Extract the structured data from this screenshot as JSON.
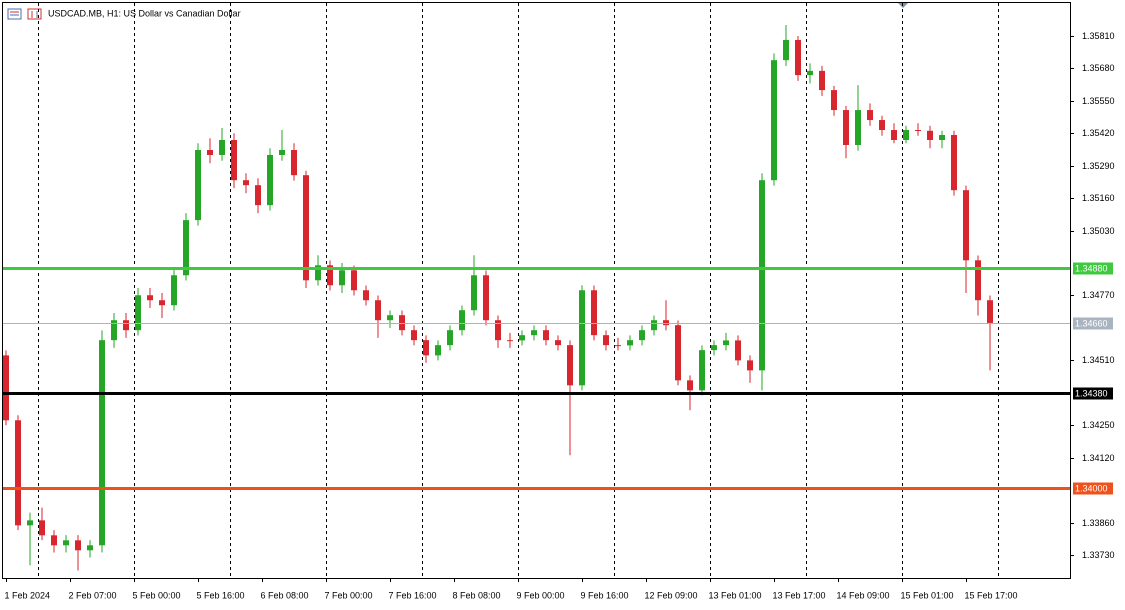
{
  "chart_data": {
    "type": "candlestick",
    "title": "USDCAD.MB, H1: US Dollar vs Canadian Dollar",
    "x": [
      0,
      3,
      6,
      9,
      12,
      15,
      18,
      21,
      24,
      27,
      30,
      33,
      36,
      39,
      42,
      45,
      48,
      51,
      54,
      57,
      60,
      63,
      66,
      69,
      72,
      75,
      78,
      81,
      84,
      87,
      90,
      93,
      96,
      99,
      102,
      105,
      108,
      111,
      114,
      117,
      120,
      123,
      126,
      129,
      132,
      135,
      138,
      141,
      144,
      147,
      150,
      153,
      156,
      159,
      162,
      165,
      168,
      171,
      174,
      177,
      180,
      183,
      186,
      189,
      192,
      195,
      198,
      201,
      204,
      207,
      210,
      213,
      216,
      219,
      222,
      225,
      228,
      231,
      234,
      237,
      240,
      243,
      246
    ],
    "open": [
      1.3453,
      1.3427,
      1.33849,
      1.33869,
      1.33809,
      1.33769,
      1.33789,
      1.33749,
      1.33769,
      1.34591,
      1.34671,
      1.34631,
      1.34771,
      1.34751,
      1.34731,
      1.34851,
      1.35072,
      1.35353,
      1.35333,
      1.35393,
      1.35232,
      1.35212,
      1.35132,
      1.35333,
      1.35353,
      1.35252,
      1.34831,
      1.34891,
      1.34811,
      1.34871,
      1.34791,
      1.34751,
      1.34671,
      1.34691,
      1.34631,
      1.34591,
      1.3453,
      1.34571,
      1.34631,
      1.34711,
      1.34851,
      1.34671,
      1.34591,
      1.3459,
      1.34611,
      1.34631,
      1.34591,
      1.34571,
      1.3441,
      1.34791,
      1.34611,
      1.34571,
      1.3457,
      1.34591,
      1.34631,
      1.34671,
      1.34651,
      1.3443,
      1.3439,
      1.34551,
      1.34571,
      1.3459,
      1.3451,
      1.3447,
      1.35232,
      1.35713,
      1.35794,
      1.35653,
      1.3567,
      1.35593,
      1.35513,
      1.35373,
      1.35513,
      1.35473,
      1.35433,
      1.35393,
      1.35433,
      1.3543,
      1.35393,
      1.35413,
      1.35192,
      1.34911,
      1.34751
    ],
    "high": [
      1.3455,
      1.3429,
      1.339,
      1.3392,
      1.3383,
      1.3381,
      1.3381,
      1.3379,
      1.3463,
      1.347,
      1.347,
      1.348,
      1.348,
      1.3478,
      1.3488,
      1.351,
      1.3538,
      1.354,
      1.35441,
      1.3542,
      1.3526,
      1.3524,
      1.3536,
      1.35433,
      1.3538,
      1.3527,
      1.34931,
      1.3491,
      1.349,
      1.3489,
      1.3481,
      1.3477,
      1.3471,
      1.3471,
      1.3465,
      1.3461,
      1.3459,
      1.3465,
      1.3473,
      1.34931,
      1.3487,
      1.3469,
      1.3462,
      1.3463,
      1.3465,
      1.3465,
      1.3461,
      1.3459,
      1.34811,
      1.3481,
      1.3463,
      1.346,
      1.3461,
      1.3465,
      1.3469,
      1.34751,
      1.3467,
      1.3445,
      1.3457,
      1.3459,
      1.3462,
      1.3461,
      1.3453,
      1.3526,
      1.3574,
      1.35854,
      1.3581,
      1.357,
      1.3569,
      1.3561,
      1.3553,
      1.35613,
      1.3554,
      1.3549,
      1.3546,
      1.3545,
      1.3546,
      1.3545,
      1.3543,
      1.3543,
      1.3521,
      1.3493,
      1.3477
    ],
    "low": [
      1.3425,
      1.3383,
      1.33689,
      1.3379,
      1.3374,
      1.3374,
      1.33668,
      1.3372,
      1.3374,
      1.3456,
      1.346,
      1.3461,
      1.3472,
      1.3468,
      1.3471,
      1.3483,
      1.3505,
      1.353,
      1.3531,
      1.352,
      1.3518,
      1.351,
      1.3511,
      1.3531,
      1.3523,
      1.348,
      1.3481,
      1.3479,
      1.3478,
      1.3477,
      1.3473,
      1.346,
      1.3464,
      1.3461,
      1.3457,
      1.345,
      1.3451,
      1.3455,
      1.3461,
      1.3469,
      1.3465,
      1.3456,
      1.3456,
      1.3457,
      1.3459,
      1.3457,
      1.3455,
      1.3413,
      1.3439,
      1.3459,
      1.3455,
      1.3455,
      1.3455,
      1.3457,
      1.3461,
      1.3463,
      1.3441,
      1.3431,
      1.3437,
      1.3453,
      1.3455,
      1.3449,
      1.3442,
      1.3439,
      1.3521,
      1.3569,
      1.3563,
      1.3562,
      1.3557,
      1.3549,
      1.3532,
      1.3535,
      1.3545,
      1.3541,
      1.3538,
      1.3538,
      1.3541,
      1.3536,
      1.3536,
      1.3517,
      1.3478,
      1.3469,
      1.3447
    ],
    "close": [
      1.3427,
      1.33849,
      1.33869,
      1.33809,
      1.33769,
      1.33789,
      1.33749,
      1.33769,
      1.34591,
      1.34671,
      1.34631,
      1.34771,
      1.34751,
      1.34731,
      1.34851,
      1.35072,
      1.35353,
      1.35333,
      1.35393,
      1.35232,
      1.35212,
      1.35132,
      1.35333,
      1.35353,
      1.35252,
      1.34831,
      1.34891,
      1.34811,
      1.34871,
      1.34791,
      1.34751,
      1.34671,
      1.34691,
      1.34631,
      1.34591,
      1.3453,
      1.34571,
      1.34631,
      1.34711,
      1.34851,
      1.34671,
      1.34591,
      1.3459,
      1.34611,
      1.34631,
      1.34591,
      1.34571,
      1.3441,
      1.34791,
      1.34611,
      1.34571,
      1.3457,
      1.34591,
      1.34631,
      1.34671,
      1.34651,
      1.3443,
      1.3439,
      1.34551,
      1.34571,
      1.3459,
      1.3451,
      1.3447,
      1.35232,
      1.35713,
      1.35794,
      1.35653,
      1.3567,
      1.35593,
      1.35513,
      1.35373,
      1.35513,
      1.35473,
      1.35433,
      1.35393,
      1.35433,
      1.3543,
      1.35393,
      1.35413,
      1.35192,
      1.34911,
      1.34751,
      1.3466
    ],
    "up_color": "#26a626",
    "down_color": "#d8262e",
    "xlim": [
      -0.75,
      266
    ],
    "ylim": [
      1.33638,
      1.35954
    ],
    "xticks": [
      {
        "value": 0,
        "label": "1 Feb 2024"
      },
      {
        "value": 16,
        "label": "2 Feb 07:00"
      },
      {
        "value": 32,
        "label": "5 Feb 00:00"
      },
      {
        "value": 48,
        "label": "5 Feb 16:00"
      },
      {
        "value": 64,
        "label": "6 Feb 08:00"
      },
      {
        "value": 80,
        "label": "7 Feb 00:00"
      },
      {
        "value": 96,
        "label": "7 Feb 16:00"
      },
      {
        "value": 112,
        "label": "8 Feb 08:00"
      },
      {
        "value": 128,
        "label": "9 Feb 00:00"
      },
      {
        "value": 144,
        "label": "9 Feb 16:00"
      },
      {
        "value": 160,
        "label": "12 Feb 09:00"
      },
      {
        "value": 176,
        "label": "13 Feb 01:00"
      },
      {
        "value": 192,
        "label": "13 Feb 17:00"
      },
      {
        "value": 208,
        "label": "14 Feb 09:00"
      },
      {
        "value": 224,
        "label": "15 Feb 01:00"
      },
      {
        "value": 240,
        "label": "15 Feb 17:00"
      }
    ],
    "yticks": [
      {
        "value": 1.3581,
        "label": "1.35810"
      },
      {
        "value": 1.3568,
        "label": "1.35680"
      },
      {
        "value": 1.3555,
        "label": "1.35550"
      },
      {
        "value": 1.3542,
        "label": "1.35420"
      },
      {
        "value": 1.3529,
        "label": "1.35290"
      },
      {
        "value": 1.3516,
        "label": "1.35160"
      },
      {
        "value": 1.3503,
        "label": "1.35030"
      },
      {
        "value": 1.3477,
        "label": "1.34770"
      },
      {
        "value": 1.3451,
        "label": "1.34510"
      },
      {
        "value": 1.3425,
        "label": "1.34250"
      },
      {
        "value": 1.3412,
        "label": "1.34120"
      },
      {
        "value": 1.3386,
        "label": "1.33860"
      },
      {
        "value": 1.3373,
        "label": "1.33730"
      }
    ],
    "vgrid": [
      8,
      32,
      56,
      80,
      104,
      128,
      152,
      176,
      200,
      224,
      248
    ],
    "hlines": [
      {
        "value": 1.3488,
        "label": "1.34880",
        "color": "#3fc93f"
      },
      {
        "value": 1.3466,
        "label": "1.34660",
        "color": "#a9b4c0"
      },
      {
        "value": 1.3438,
        "label": "1.34380",
        "color": "#000000"
      },
      {
        "value": 1.34,
        "label": "1.34000",
        "color": "#f0501a"
      }
    ]
  }
}
